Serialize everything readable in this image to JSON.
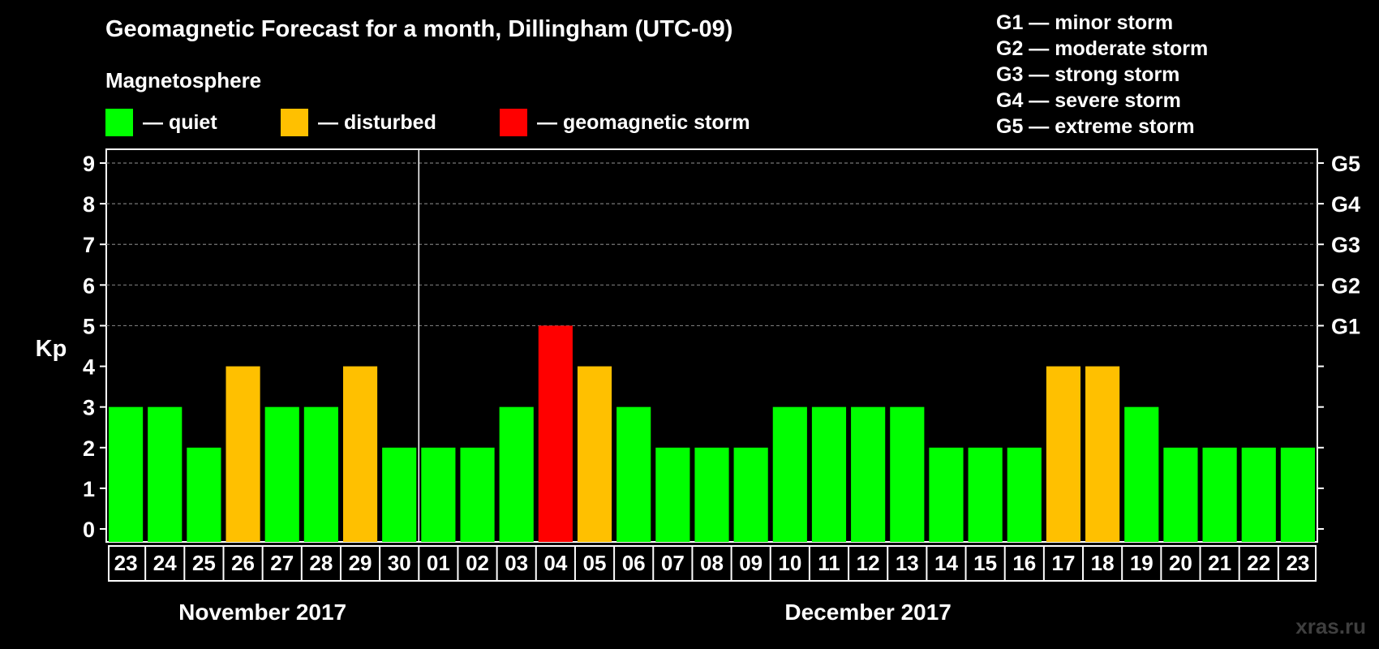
{
  "header": {
    "title": "Geomagnetic Forecast for a month, Dillingham (UTC-09)",
    "section": "Magnetosphere"
  },
  "legend": [
    {
      "label": "— quiet",
      "color": "#00ff00"
    },
    {
      "label": "— disturbed",
      "color": "#ffc000"
    },
    {
      "label": "— geomagnetic storm",
      "color": "#ff0000"
    }
  ],
  "storm_scale": [
    "G1 — minor storm",
    "G2 — moderate storm",
    "G3 — strong storm",
    "G4 — severe storm",
    "G5 — extreme storm"
  ],
  "watermark": "xras.ru",
  "colors": {
    "quiet": "#00ff00",
    "disturbed": "#ffc000",
    "storm": "#ff0000",
    "grid": "#777777",
    "frame": "#ffffff"
  },
  "chart_data": {
    "type": "bar",
    "ylabel": "Kp",
    "ylim": [
      0,
      9
    ],
    "yticks": [
      "0",
      "1",
      "2",
      "3",
      "4",
      "5",
      "6",
      "7",
      "8",
      "9"
    ],
    "grid": "dashed horizontal at Kp 5-9",
    "right_axis": [
      {
        "kp": 5,
        "label": "G1"
      },
      {
        "kp": 6,
        "label": "G2"
      },
      {
        "kp": 7,
        "label": "G3"
      },
      {
        "kp": 8,
        "label": "G4"
      },
      {
        "kp": 9,
        "label": "G5"
      }
    ],
    "categories": [
      "23",
      "24",
      "25",
      "26",
      "27",
      "28",
      "29",
      "30",
      "01",
      "02",
      "03",
      "04",
      "05",
      "06",
      "07",
      "08",
      "09",
      "10",
      "11",
      "12",
      "13",
      "14",
      "15",
      "16",
      "17",
      "18",
      "19",
      "20",
      "21",
      "22",
      "23"
    ],
    "values": [
      3,
      3,
      2,
      4,
      3,
      3,
      4,
      2,
      2,
      2,
      3,
      5,
      4,
      3,
      2,
      2,
      2,
      3,
      3,
      3,
      3,
      2,
      2,
      2,
      4,
      4,
      3,
      2,
      2,
      2,
      2
    ],
    "status": [
      "quiet",
      "quiet",
      "quiet",
      "disturbed",
      "quiet",
      "quiet",
      "disturbed",
      "quiet",
      "quiet",
      "quiet",
      "quiet",
      "storm",
      "disturbed",
      "quiet",
      "quiet",
      "quiet",
      "quiet",
      "quiet",
      "quiet",
      "quiet",
      "quiet",
      "quiet",
      "quiet",
      "quiet",
      "disturbed",
      "disturbed",
      "quiet",
      "quiet",
      "quiet",
      "quiet",
      "quiet"
    ],
    "month_groups": [
      {
        "label": "November 2017",
        "start": 0,
        "end": 7
      },
      {
        "label": "December 2017",
        "start": 8,
        "end": 30
      }
    ]
  }
}
